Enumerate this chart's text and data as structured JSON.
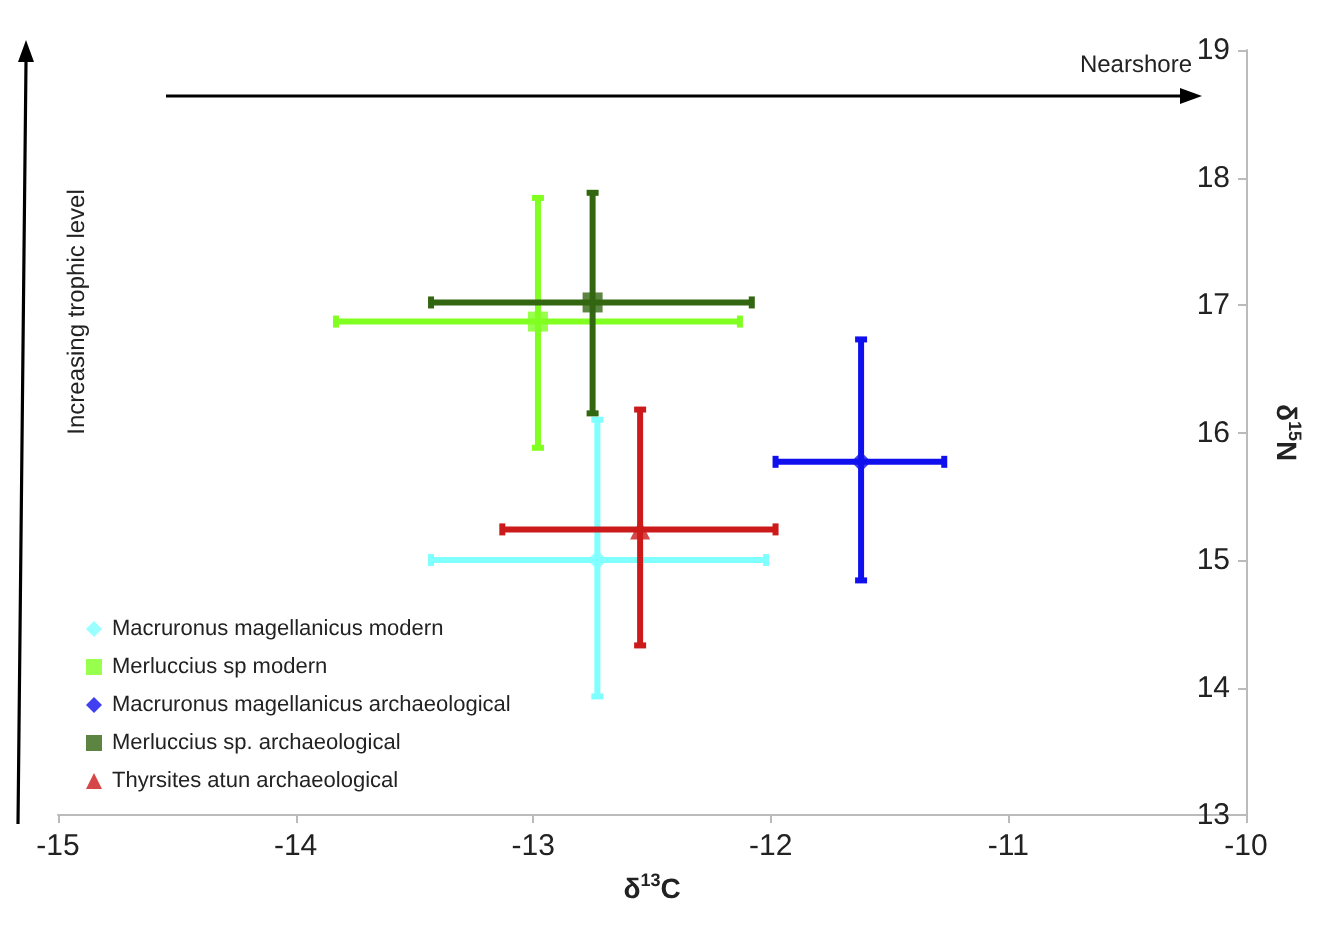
{
  "chart_data": {
    "type": "scatter",
    "xlabel": "δ$^{13}$C",
    "ylabel": "δ$^{15}$N",
    "annotations": [
      "Nearshore",
      "Increasing trophic level"
    ],
    "series": [
      {
        "name": "Macruronus magellanicus modern",
        "color": "#80ffff",
        "marker": "diamond",
        "x": [
          -12.73
        ],
        "values": [
          15.0
        ],
        "xerrors": [
          [
            -13.43,
            -12.02
          ]
        ],
        "errors": [
          [
            13.93,
            16.1
          ]
        ]
      },
      {
        "name": "Merluccius sp modern",
        "color": "#80ff20",
        "marker": "square",
        "x": [
          -12.98
        ],
        "values": [
          16.87
        ],
        "xerrors": [
          [
            -13.83,
            -12.13
          ]
        ],
        "errors": [
          [
            15.88,
            17.84
          ]
        ]
      },
      {
        "name": "Macruronus magellanicus archaeological",
        "color": "#1010ee",
        "marker": "diamond",
        "x": [
          -11.62
        ],
        "values": [
          15.77
        ],
        "xerrors": [
          [
            -11.98,
            -11.27
          ]
        ],
        "errors": [
          [
            14.84,
            16.73
          ]
        ]
      },
      {
        "name": "Merluccius sp. archaeological",
        "color": "#336611",
        "marker": "square",
        "x": [
          -12.75
        ],
        "values": [
          17.02
        ],
        "xerrors": [
          [
            -13.43,
            -12.08
          ]
        ],
        "errors": [
          [
            16.15,
            17.88
          ]
        ]
      },
      {
        "name": "Thyrsites atun archaeological",
        "color": "#cc1a1a",
        "marker": "triangle",
        "x": [
          -12.55
        ],
        "values": [
          15.24
        ],
        "xerrors": [
          [
            -13.13,
            -11.98
          ]
        ],
        "errors": [
          [
            14.33,
            16.18
          ]
        ]
      }
    ],
    "xlim": [
      -15,
      -10
    ],
    "xticks": [
      -15,
      -14,
      -13,
      -12,
      -11,
      -10
    ],
    "ylim": [
      13,
      19
    ],
    "yticks": [
      13,
      14,
      15,
      16,
      17,
      18,
      19
    ],
    "grid": false,
    "legend": "bottom left"
  }
}
